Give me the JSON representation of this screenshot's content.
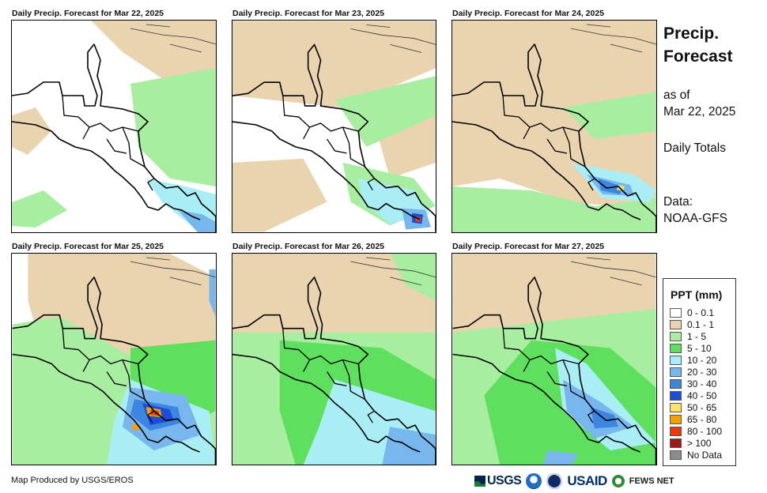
{
  "panels": [
    {
      "title": "Daily Precip. Forecast for Mar 22, 2025"
    },
    {
      "title": "Daily Precip. Forecast for Mar 23, 2025"
    },
    {
      "title": "Daily Precip. Forecast for Mar 24, 2025"
    },
    {
      "title": "Daily Precip. Forecast for Mar 25, 2025"
    },
    {
      "title": "Daily Precip. Forecast for Mar 26, 2025"
    },
    {
      "title": "Daily Precip. Forecast for Mar 27, 2025"
    }
  ],
  "sidebar": {
    "title_line1": "Precip.",
    "title_line2": "Forecast",
    "asof_line1": "as of",
    "asof_line2": "Mar 22, 2025",
    "totals": "Daily Totals",
    "data_label": "Data:",
    "data_source": "NOAA-GFS"
  },
  "legend": {
    "title": "PPT (mm)",
    "items": [
      {
        "label": "0 - 0.1",
        "color": "#ffffff"
      },
      {
        "label": "0.1 - 1",
        "color": "#e9d4af"
      },
      {
        "label": "1 - 5",
        "color": "#a8eea0"
      },
      {
        "label": "5 - 10",
        "color": "#5ee05e"
      },
      {
        "label": "10 - 20",
        "color": "#aaeef5"
      },
      {
        "label": "20 - 30",
        "color": "#78b6ee"
      },
      {
        "label": "30 - 40",
        "color": "#3a86e0"
      },
      {
        "label": "40 - 50",
        "color": "#1c4fd6"
      },
      {
        "label": "50 - 65",
        "color": "#ffe26a"
      },
      {
        "label": "65 - 80",
        "color": "#f5a000"
      },
      {
        "label": "80 - 100",
        "color": "#e83a10"
      },
      {
        "label": "> 100",
        "color": "#a01818"
      },
      {
        "label": "No Data",
        "color": "#8c8c8c"
      }
    ]
  },
  "footer": {
    "credit": "Map Produced by USGS/EROS",
    "logo_usgs": "USGS",
    "logo_usaid": "USAID",
    "logo_fews": "FEWS NET"
  }
}
